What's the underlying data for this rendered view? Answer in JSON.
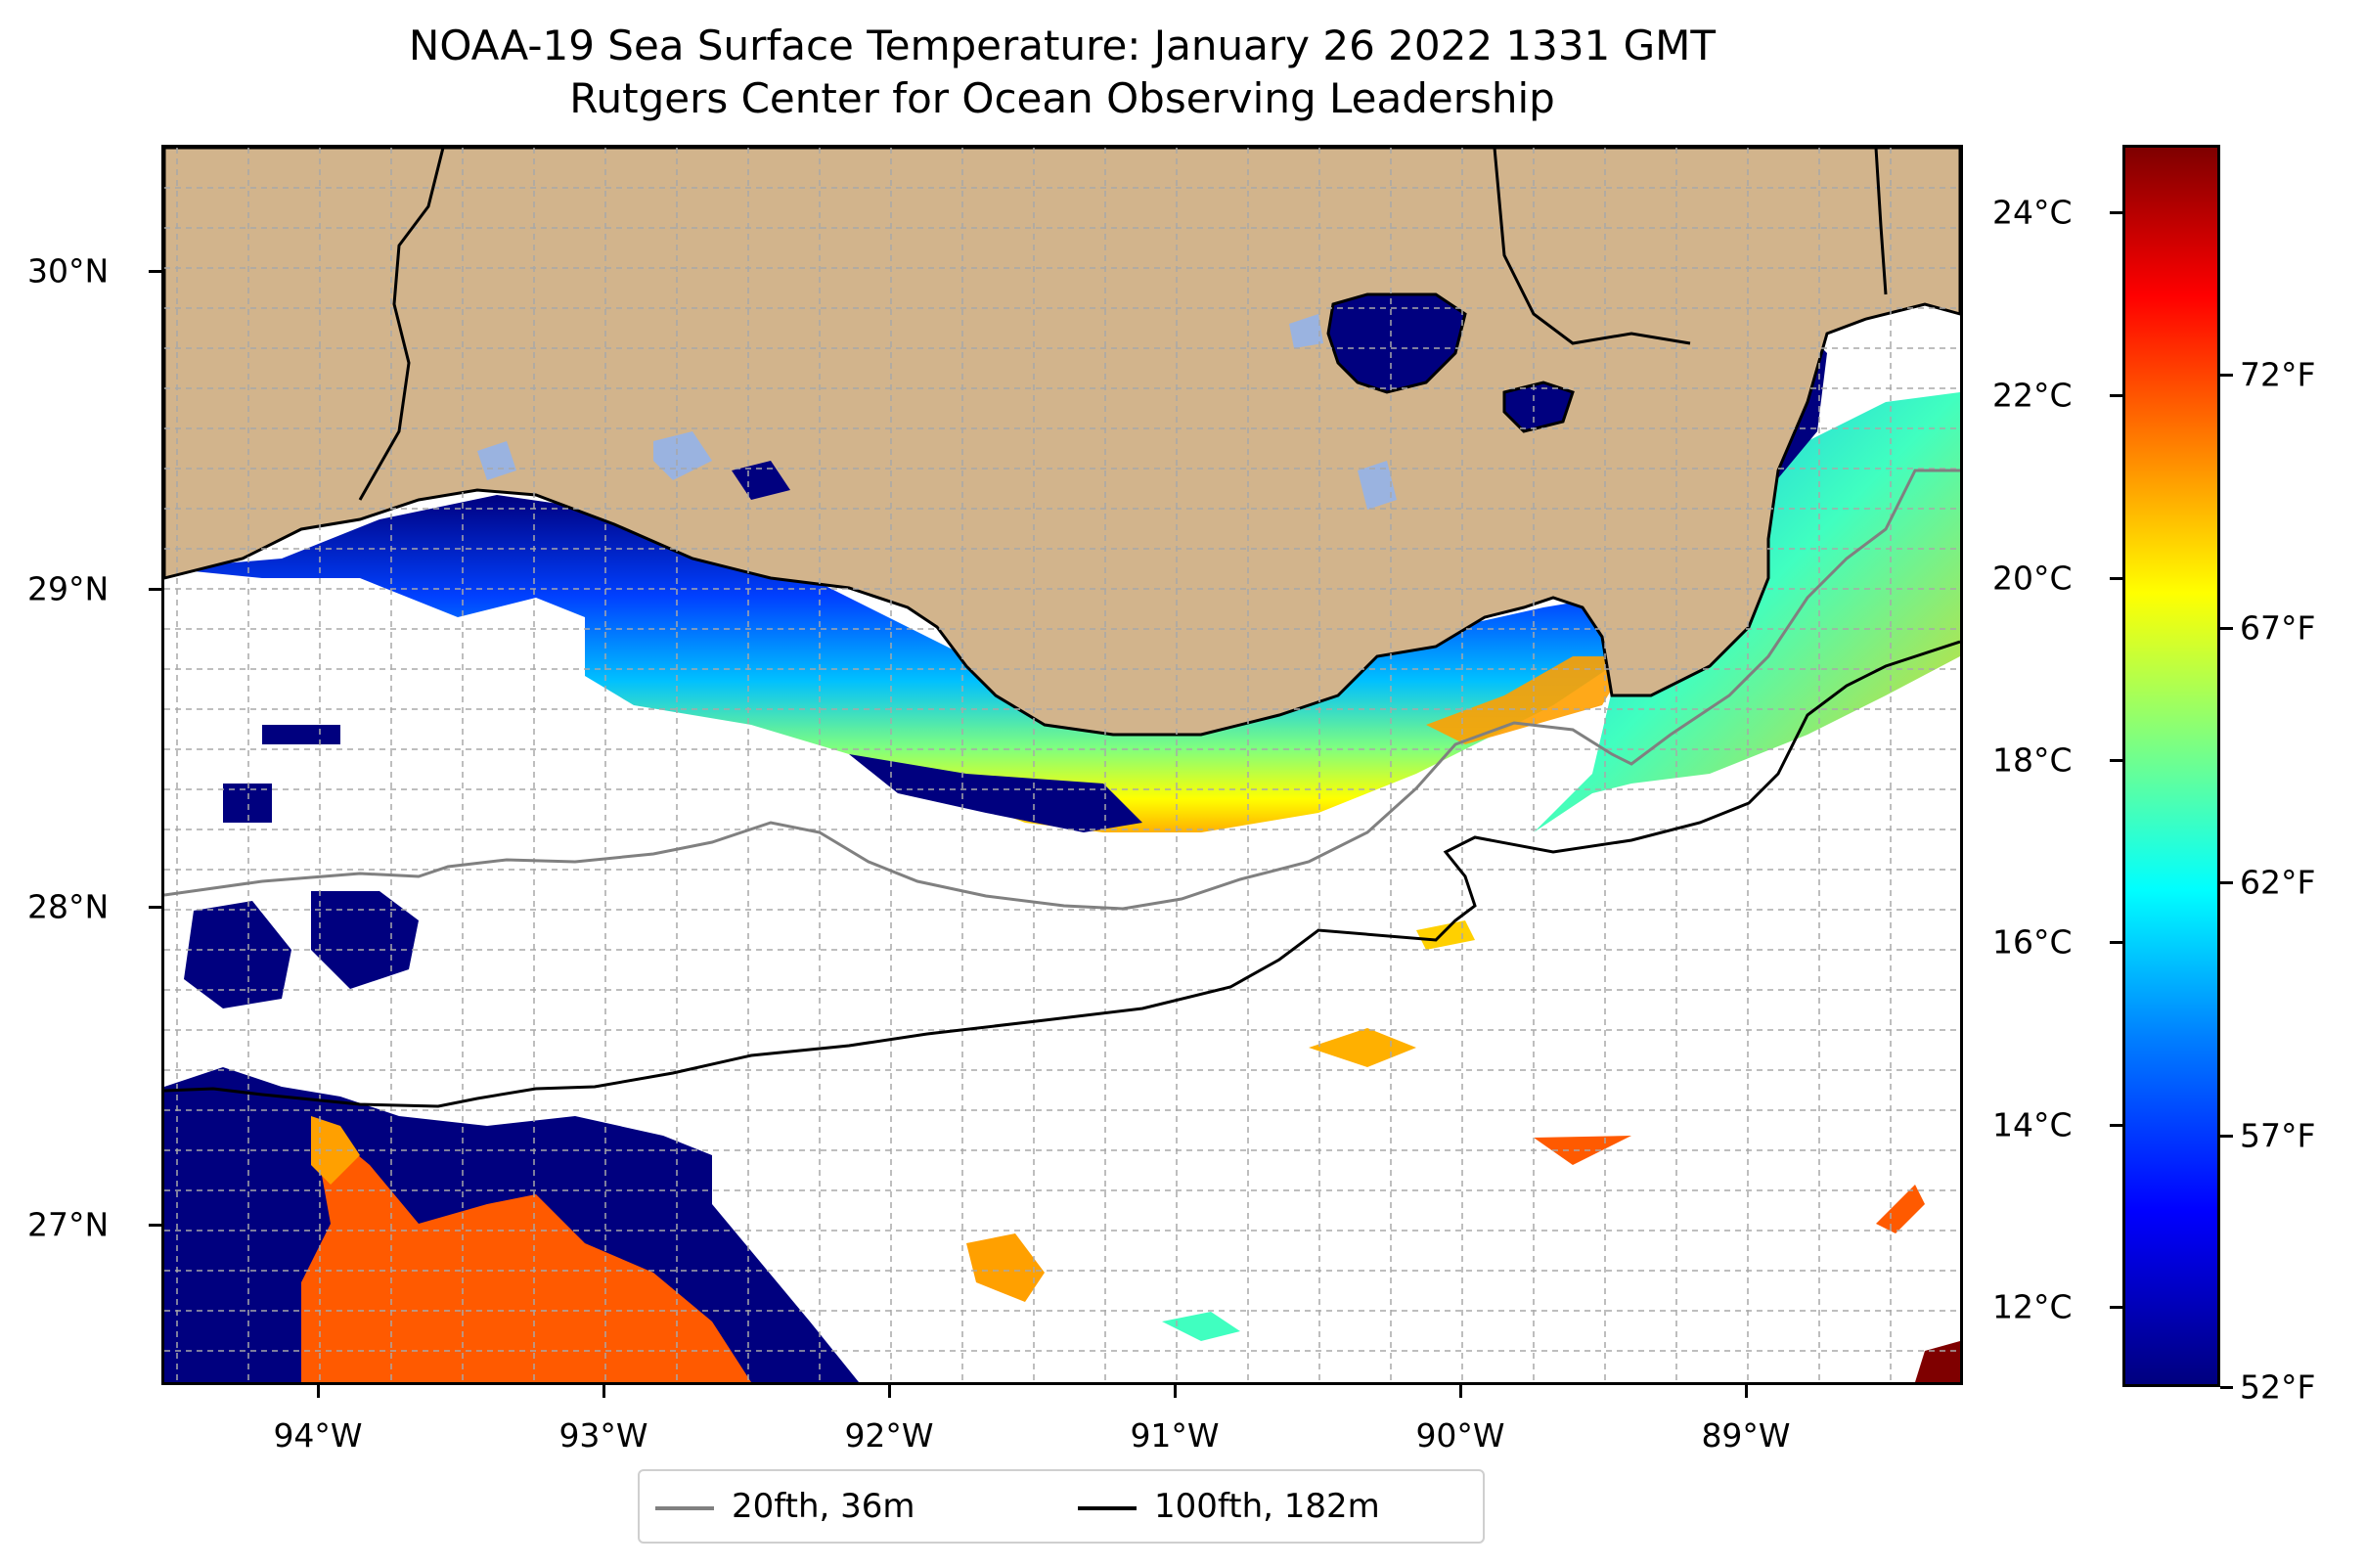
{
  "title": "NOAA-19 Sea Surface Temperature: January 26 2022 1331 GMT",
  "subtitle": "Rutgers Center for Ocean Observing Leadership",
  "map": {
    "lat_labels": [
      "30°N",
      "29°N",
      "28°N",
      "27°N"
    ],
    "lon_labels": [
      "94°W",
      "93°W",
      "92°W",
      "91°W",
      "90°W",
      "89°W"
    ],
    "land_color": "#d2b48c",
    "no_data_color": "#ffffff"
  },
  "colorbar": {
    "celsius_labels": [
      "24°C",
      "22°C",
      "20°C",
      "18°C",
      "16°C",
      "14°C",
      "12°C"
    ],
    "fahrenheit_labels": [
      "72°F",
      "67°F",
      "62°F",
      "57°F",
      "52°F"
    ],
    "colormap": "jet"
  },
  "legend": {
    "items": [
      {
        "label": "20fth, 36m",
        "color": "#808080"
      },
      {
        "label": "100fth, 182m",
        "color": "#000000"
      }
    ]
  }
}
